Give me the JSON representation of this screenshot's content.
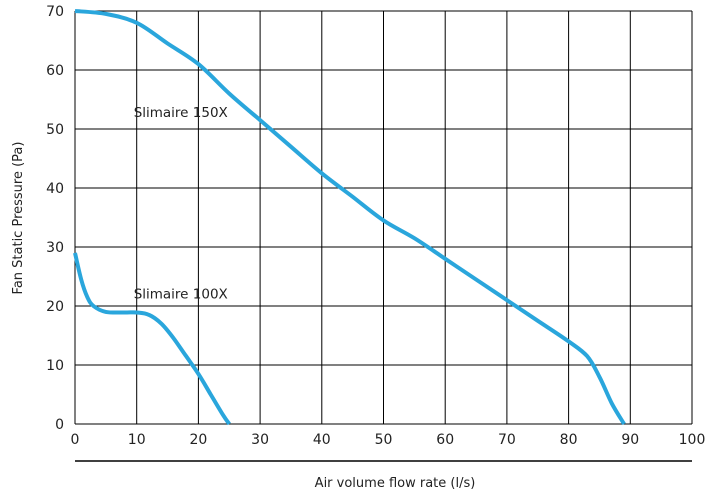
{
  "chart_data": {
    "type": "line",
    "xlabel": "Air volume flow rate (l/s)",
    "ylabel": "Fan Static Pressure (Pa)",
    "xlim": [
      0,
      100
    ],
    "ylim": [
      0,
      70
    ],
    "x_ticks": [
      "0",
      "10",
      "20",
      "30",
      "40",
      "50",
      "60",
      "70",
      "80",
      "90",
      "100"
    ],
    "y_ticks": [
      "0",
      "10",
      "20",
      "30",
      "40",
      "50",
      "60",
      "70"
    ],
    "grid": true,
    "line_color": "#2aa6dc",
    "series": [
      {
        "name": "Slimaire 150X",
        "points": [
          [
            0,
            70
          ],
          [
            5,
            69.5
          ],
          [
            10,
            68
          ],
          [
            15,
            64.5
          ],
          [
            20,
            61
          ],
          [
            25,
            56
          ],
          [
            30,
            51.5
          ],
          [
            35,
            47
          ],
          [
            40,
            42.5
          ],
          [
            45,
            38.5
          ],
          [
            50,
            34.5
          ],
          [
            55,
            31.5
          ],
          [
            60,
            28
          ],
          [
            65,
            24.5
          ],
          [
            70,
            21
          ],
          [
            75,
            17.5
          ],
          [
            80,
            14
          ],
          [
            83,
            11.5
          ],
          [
            85,
            8
          ],
          [
            87,
            3.5
          ],
          [
            89,
            0
          ]
        ]
      },
      {
        "name": "Slimaire 100X",
        "points": [
          [
            0,
            29
          ],
          [
            1,
            24.5
          ],
          [
            2,
            21.5
          ],
          [
            3,
            20
          ],
          [
            5,
            19
          ],
          [
            8,
            18.9
          ],
          [
            10,
            18.9
          ],
          [
            12,
            18.5
          ],
          [
            14,
            17
          ],
          [
            16,
            14.5
          ],
          [
            18,
            11.5
          ],
          [
            20,
            8.5
          ],
          [
            22,
            5
          ],
          [
            24,
            1.5
          ],
          [
            25,
            0
          ]
        ]
      }
    ],
    "annotations": [
      {
        "text": "Slimaire 150X",
        "x": 10,
        "y": 52
      },
      {
        "text": "Slimaire 100X",
        "x": 10,
        "y": 21.3
      }
    ]
  }
}
